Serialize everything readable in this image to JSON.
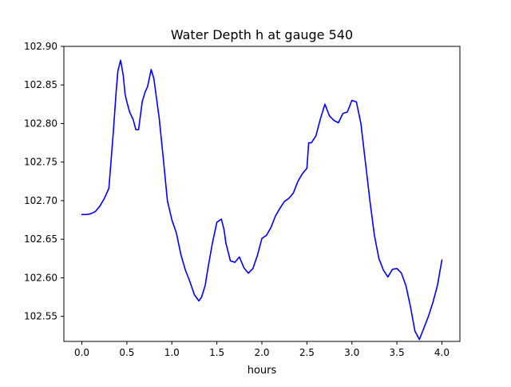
{
  "chart_data": {
    "type": "line",
    "title": "Water Depth h at gauge 540",
    "xlabel": "hours",
    "ylabel": "",
    "xlim": [
      -0.2,
      4.2
    ],
    "ylim": [
      102.5175,
      102.9
    ],
    "x_ticks": [
      0.0,
      0.5,
      1.0,
      1.5,
      2.0,
      2.5,
      3.0,
      3.5,
      4.0
    ],
    "x_tick_labels": [
      "0.0",
      "0.5",
      "1.0",
      "1.5",
      "2.0",
      "2.5",
      "3.0",
      "3.5",
      "4.0"
    ],
    "y_ticks": [
      102.55,
      102.6,
      102.65,
      102.7,
      102.75,
      102.8,
      102.85,
      102.9
    ],
    "y_tick_labels": [
      "102.55",
      "102.60",
      "102.65",
      "102.70",
      "102.75",
      "102.80",
      "102.85",
      "102.90"
    ],
    "grid": false,
    "legend": "none",
    "series": [
      {
        "color": "#0000ff",
        "x": [
          0.0,
          0.05,
          0.1,
          0.15,
          0.2,
          0.25,
          0.3,
          0.35,
          0.38,
          0.4,
          0.43,
          0.46,
          0.48,
          0.5,
          0.53,
          0.57,
          0.6,
          0.63,
          0.67,
          0.7,
          0.73,
          0.77,
          0.8,
          0.83,
          0.86,
          0.9,
          0.95,
          1.0,
          1.05,
          1.1,
          1.15,
          1.2,
          1.25,
          1.3,
          1.33,
          1.37,
          1.4,
          1.45,
          1.5,
          1.55,
          1.58,
          1.6,
          1.65,
          1.7,
          1.75,
          1.8,
          1.85,
          1.9,
          1.95,
          2.0,
          2.05,
          2.1,
          2.15,
          2.2,
          2.25,
          2.3,
          2.35,
          2.4,
          2.45,
          2.5,
          2.52,
          2.55,
          2.6,
          2.65,
          2.7,
          2.75,
          2.8,
          2.85,
          2.9,
          2.95,
          3.0,
          3.05,
          3.1,
          3.15,
          3.2,
          3.25,
          3.3,
          3.35,
          3.4,
          3.45,
          3.5,
          3.55,
          3.6,
          3.65,
          3.7,
          3.75,
          3.8,
          3.85,
          3.9,
          3.95,
          4.0
        ],
        "y": [
          102.682,
          102.682,
          102.683,
          102.686,
          102.693,
          102.703,
          102.716,
          102.79,
          102.84,
          102.868,
          102.882,
          102.862,
          102.838,
          102.828,
          102.815,
          102.805,
          102.792,
          102.792,
          102.828,
          102.84,
          102.848,
          102.87,
          102.858,
          102.832,
          102.806,
          102.76,
          102.7,
          102.675,
          102.658,
          102.63,
          102.61,
          102.595,
          102.578,
          102.57,
          102.575,
          102.59,
          102.612,
          102.645,
          102.672,
          102.676,
          102.662,
          102.645,
          102.622,
          102.62,
          102.627,
          102.613,
          102.606,
          102.612,
          102.629,
          102.651,
          102.655,
          102.665,
          102.68,
          102.69,
          102.699,
          102.703,
          102.71,
          102.725,
          102.735,
          102.742,
          102.775,
          102.775,
          102.784,
          102.806,
          102.825,
          102.81,
          102.804,
          102.801,
          102.813,
          102.815,
          102.83,
          102.828,
          102.8,
          102.75,
          102.7,
          102.655,
          102.625,
          102.61,
          102.601,
          102.611,
          102.612,
          102.606,
          102.59,
          102.563,
          102.531,
          102.52,
          102.535,
          102.55,
          102.568,
          102.59,
          102.623
        ]
      }
    ]
  }
}
